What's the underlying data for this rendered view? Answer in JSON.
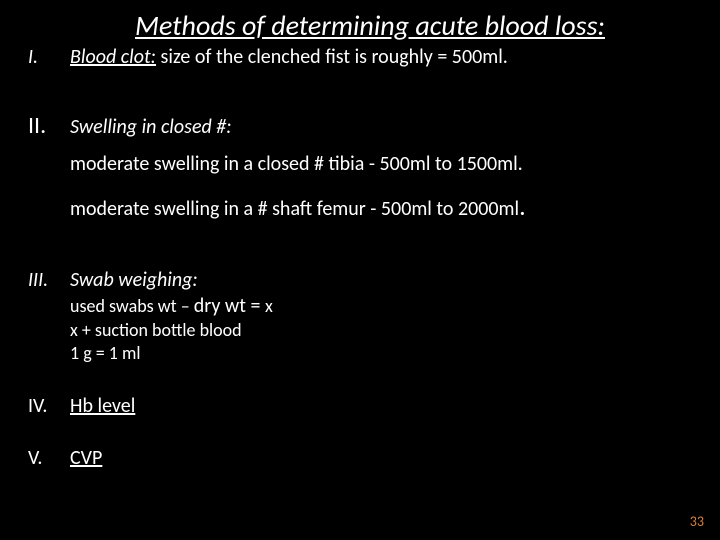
{
  "colors": {
    "bg": "#000000",
    "text": "#ffffff",
    "pagenum": "#d97f3a"
  },
  "title": "Methods of determining acute blood loss:",
  "page_number": "33",
  "items": {
    "i": {
      "num": "I.",
      "lead": "Blood clot:",
      "rest": "  size of the clenched fist  is roughly = 500ml."
    },
    "ii": {
      "num": "II.",
      "lead": "Swelling in closed #:",
      "line1": "moderate swelling in a closed # tibia - 500ml to 1500ml.",
      "line2_a": "moderate swelling in a  # shaft femur - 500ml to 2000ml",
      "line2_dot": "."
    },
    "iii": {
      "num": "III.",
      "lead": "Swab weighing:",
      "l1a": "used swabs wt – ",
      "l1b": "dry wt = ",
      "l1c": "x",
      "l2": "x  + suction bottle blood",
      "l3": "1 g = 1 ml"
    },
    "iv": {
      "num": "IV.",
      "label": "Hb level"
    },
    "v": {
      "num": "V.",
      "label": "CVP"
    }
  }
}
